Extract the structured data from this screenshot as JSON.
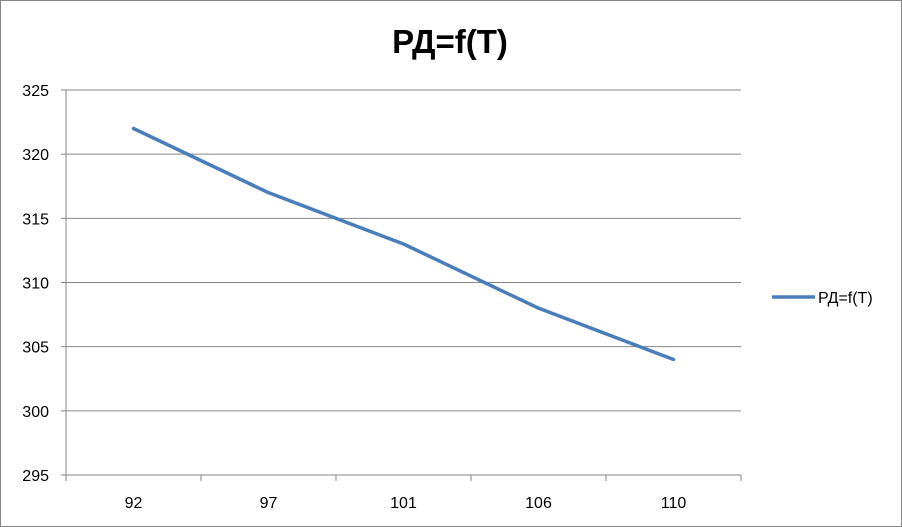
{
  "chart_data": {
    "type": "line",
    "title": "РД=f(T)",
    "xlabel": "",
    "ylabel": "",
    "categories": [
      "92",
      "97",
      "101",
      "106",
      "110"
    ],
    "series": [
      {
        "name": "РД=f(T)",
        "values": [
          322,
          317,
          313,
          308,
          304
        ],
        "color": "#4a7ebb"
      }
    ],
    "ylim": [
      295,
      325
    ],
    "yticks": [
      295,
      300,
      305,
      310,
      315,
      320,
      325
    ],
    "grid": true,
    "legend": "right"
  }
}
